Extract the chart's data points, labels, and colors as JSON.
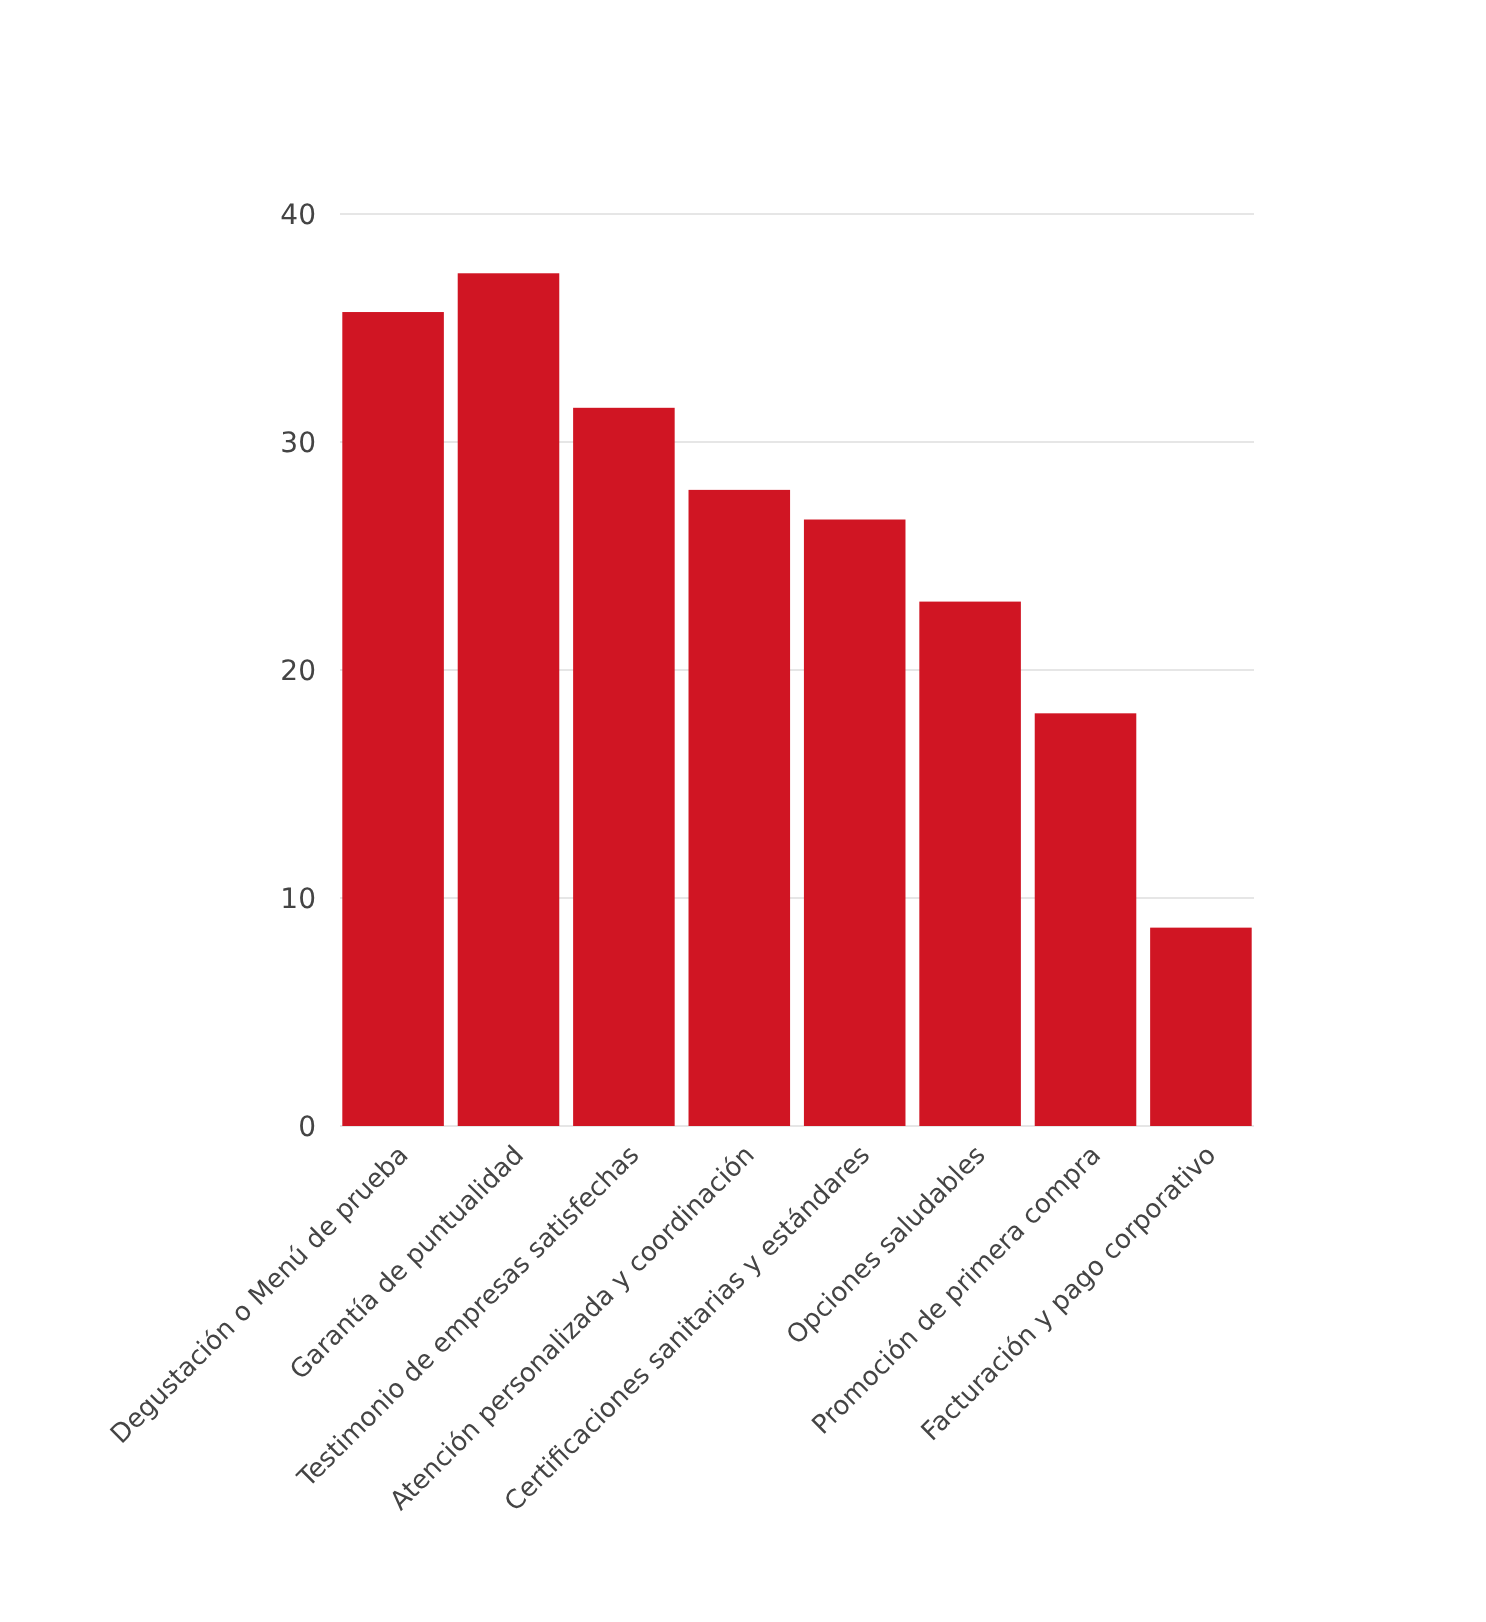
{
  "chart_data": {
    "type": "bar",
    "categories": [
      "Degustación o Menú de prueba",
      "Garantía de puntualidad",
      "Testimonio de empresas satisfechas",
      "Atención personalizada y coordinación",
      "Certificaciones sanitarias y estándares",
      "Opciones saludables",
      "Promoción de primera compra",
      "Facturación y pago corporativo"
    ],
    "values": [
      35.7,
      37.4,
      31.5,
      27.9,
      26.6,
      23.0,
      18.1,
      8.7
    ],
    "color": "#d01523",
    "ylim": [
      0,
      40
    ],
    "yticks": [
      0,
      10,
      20,
      30,
      40
    ],
    "grid": "y"
  }
}
